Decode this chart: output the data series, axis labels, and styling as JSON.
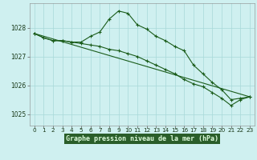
{
  "title": "Graphe pression niveau de la mer (hPa)",
  "background_color": "#cff0f0",
  "grid_color": "#a8d8d8",
  "line_color": "#1a5c1a",
  "marker_color": "#1a5c1a",
  "xlabel_bg": "#2d6e2d",
  "xlim": [
    -0.5,
    23.5
  ],
  "ylim": [
    1024.6,
    1028.85
  ],
  "yticks": [
    1025,
    1026,
    1027,
    1028
  ],
  "xticks": [
    0,
    1,
    2,
    3,
    4,
    5,
    6,
    7,
    8,
    9,
    10,
    11,
    12,
    13,
    14,
    15,
    16,
    17,
    18,
    19,
    20,
    21,
    22,
    23
  ],
  "series1_x": [
    0,
    1,
    2,
    3,
    4,
    5,
    6,
    7,
    8,
    9,
    10,
    11,
    12,
    13,
    14,
    15,
    16,
    17,
    18,
    19,
    20,
    21,
    22,
    23
  ],
  "series1_y": [
    1027.8,
    1027.65,
    1027.55,
    1027.55,
    1027.5,
    1027.5,
    1027.7,
    1027.85,
    1028.3,
    1028.58,
    1028.5,
    1028.1,
    1027.95,
    1027.7,
    1027.55,
    1027.35,
    1027.2,
    1026.7,
    1026.4,
    1026.1,
    1025.85,
    1025.5,
    1025.55,
    1025.6
  ],
  "series2_x": [
    0,
    1,
    2,
    3,
    4,
    5,
    6,
    7,
    8,
    9,
    10,
    11,
    12,
    13,
    14,
    15,
    16,
    17,
    18,
    19,
    20,
    21,
    22,
    23
  ],
  "series2_y": [
    1027.8,
    1027.65,
    1027.55,
    1027.55,
    1027.5,
    1027.45,
    1027.4,
    1027.35,
    1027.25,
    1027.2,
    1027.1,
    1027.0,
    1026.85,
    1026.7,
    1026.55,
    1026.4,
    1026.2,
    1026.05,
    1025.95,
    1025.75,
    1025.55,
    1025.3,
    1025.5,
    1025.6
  ],
  "series3_x": [
    0,
    23
  ],
  "series3_y": [
    1027.8,
    1025.6
  ]
}
